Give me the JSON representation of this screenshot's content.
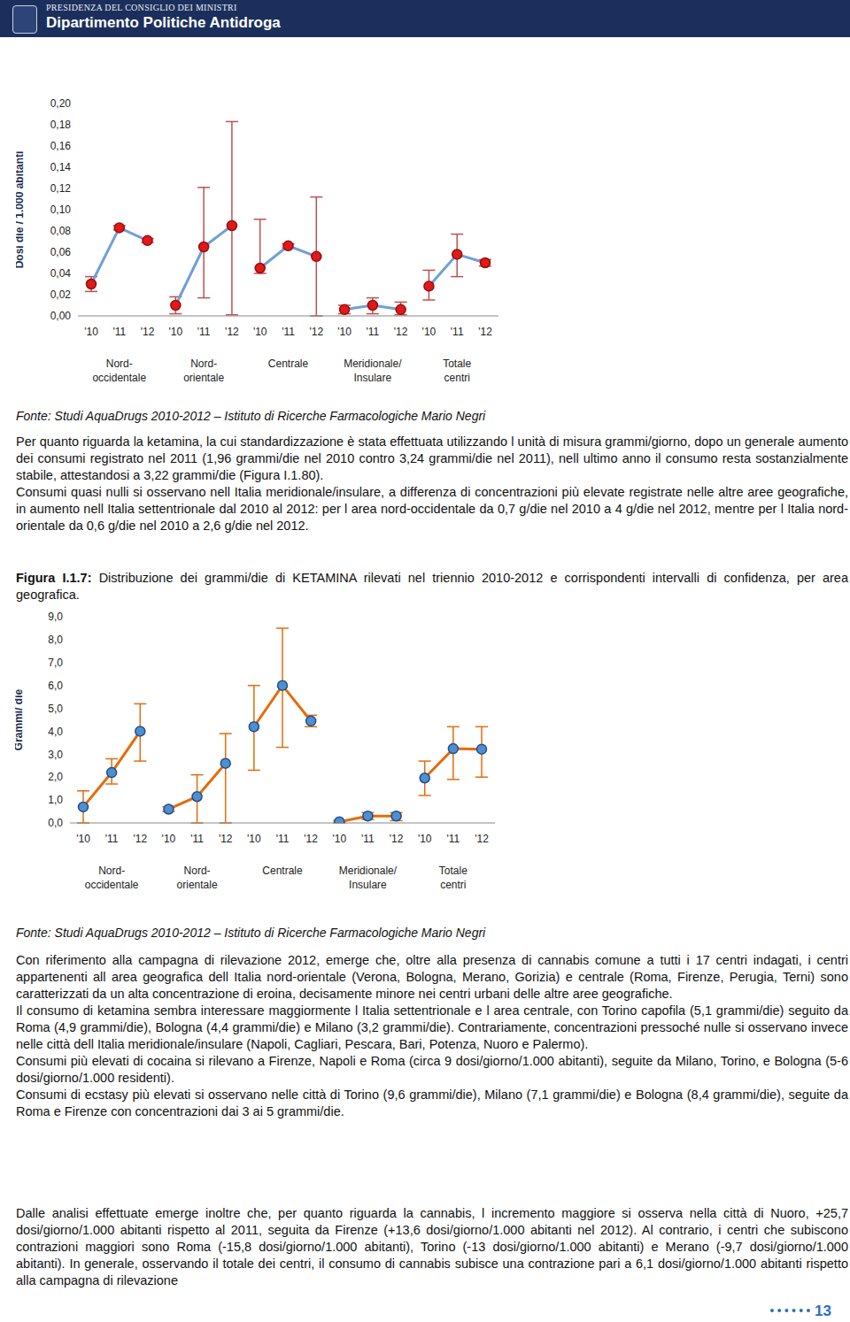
{
  "chart_data": [
    {
      "type": "line",
      "y_label": "Dosi die / 1.000 abitanti",
      "categories": [
        "'10",
        "'11",
        "'12",
        "'10",
        "'11",
        "'12",
        "'10",
        "'11",
        "'12",
        "'10",
        "'11",
        "'12",
        "'10",
        "'11",
        "'12"
      ],
      "color": "#6f9fd8",
      "marker": "circle",
      "ylim": [
        0,
        0.2
      ],
      "yticks": [
        {
          "value": 0,
          "label": "0,00"
        },
        {
          "value": 0.02,
          "label": "0,02"
        },
        {
          "value": 0.04,
          "label": "0,04"
        },
        {
          "value": 0.06,
          "label": "0,06"
        },
        {
          "value": 0.08,
          "label": "0,08"
        },
        {
          "value": 0.1,
          "label": "0,10"
        },
        {
          "value": 0.12,
          "label": "0,12"
        },
        {
          "value": 0.14,
          "label": "0,14"
        },
        {
          "value": 0.16,
          "label": "0,16"
        },
        {
          "value": 0.18,
          "label": "0,18"
        },
        {
          "value": 0.2,
          "label": "0,20"
        }
      ],
      "series": [
        {
          "name": "Nord-\noccidentale",
          "values": [
            0.03,
            0.083,
            0.071,
            null,
            null,
            null,
            null,
            null,
            null,
            null,
            null,
            null,
            null,
            null,
            null
          ],
          "ci_low": [
            0.023,
            0.081,
            0.069,
            null,
            null,
            null,
            null,
            null,
            null,
            null,
            null,
            null,
            null,
            null,
            null
          ],
          "ci_high": [
            0.037,
            0.085,
            0.073,
            null,
            null,
            null,
            null,
            null,
            null,
            null,
            null,
            null,
            null,
            null,
            null
          ]
        },
        {
          "name": "Nord-\norientale",
          "values": [
            null,
            null,
            null,
            0.01,
            0.065,
            0.085,
            null,
            null,
            null,
            null,
            null,
            null,
            null,
            null,
            null
          ],
          "ci_low": [
            null,
            null,
            null,
            0.002,
            0.017,
            0.001,
            null,
            null,
            null,
            null,
            null,
            null,
            null,
            null,
            null
          ],
          "ci_high": [
            null,
            null,
            null,
            0.018,
            0.121,
            0.183,
            null,
            null,
            null,
            null,
            null,
            null,
            null,
            null,
            null
          ]
        },
        {
          "name": "Centrale",
          "values": [
            null,
            null,
            null,
            null,
            null,
            null,
            0.045,
            0.066,
            0.056,
            null,
            null,
            null,
            null,
            null,
            null
          ],
          "ci_low": [
            null,
            null,
            null,
            null,
            null,
            null,
            0.04,
            0.064,
            0.0,
            null,
            null,
            null,
            null,
            null,
            null
          ],
          "ci_high": [
            null,
            null,
            null,
            null,
            null,
            null,
            0.091,
            0.068,
            0.112,
            null,
            null,
            null,
            null,
            null,
            null
          ]
        },
        {
          "name": "Meridionale/\nInsulare",
          "values": [
            null,
            null,
            null,
            null,
            null,
            null,
            null,
            null,
            null,
            0.006,
            0.01,
            0.006,
            null,
            null,
            null
          ],
          "ci_low": [
            null,
            null,
            null,
            null,
            null,
            null,
            null,
            null,
            null,
            0.002,
            0.002,
            0.001,
            null,
            null,
            null
          ],
          "ci_high": [
            null,
            null,
            null,
            null,
            null,
            null,
            null,
            null,
            null,
            0.01,
            0.017,
            0.013,
            null,
            null,
            null
          ]
        },
        {
          "name": "Totale\ncentri",
          "values": [
            null,
            null,
            null,
            null,
            null,
            null,
            null,
            null,
            null,
            null,
            null,
            null,
            0.028,
            0.058,
            0.05
          ],
          "ci_low": [
            null,
            null,
            null,
            null,
            null,
            null,
            null,
            null,
            null,
            null,
            null,
            null,
            0.015,
            0.037,
            0.047
          ],
          "ci_high": [
            null,
            null,
            null,
            null,
            null,
            null,
            null,
            null,
            null,
            null,
            null,
            null,
            0.043,
            0.077,
            0.053
          ]
        }
      ]
    },
    {
      "type": "line",
      "y_label": "Grammi/ die",
      "categories": [
        "'10",
        "'11",
        "'12",
        "'10",
        "'11",
        "'12",
        "'10",
        "'11",
        "'12",
        "'10",
        "'11",
        "'12",
        "'10",
        "'11",
        "'12"
      ],
      "color": "#e46c0a",
      "marker": "circle",
      "ylim": [
        0,
        9
      ],
      "yticks": [
        {
          "value": 0,
          "label": "0,0"
        },
        {
          "value": 1,
          "label": "1,0"
        },
        {
          "value": 2,
          "label": "2,0"
        },
        {
          "value": 3,
          "label": "3,0"
        },
        {
          "value": 4,
          "label": "4,0"
        },
        {
          "value": 5,
          "label": "5,0"
        },
        {
          "value": 6,
          "label": "6,0"
        },
        {
          "value": 7,
          "label": "7,0"
        },
        {
          "value": 8,
          "label": "8,0"
        },
        {
          "value": 9,
          "label": "9,0"
        }
      ],
      "series": [
        {
          "name": "Nord-\noccidentale",
          "values": [
            0.7,
            2.2,
            4.0,
            null,
            null,
            null,
            null,
            null,
            null,
            null,
            null,
            null,
            null,
            null,
            null
          ],
          "ci_low": [
            0.0,
            1.7,
            2.7,
            null,
            null,
            null,
            null,
            null,
            null,
            null,
            null,
            null,
            null,
            null,
            null
          ],
          "ci_high": [
            1.4,
            2.8,
            5.2,
            null,
            null,
            null,
            null,
            null,
            null,
            null,
            null,
            null,
            null,
            null,
            null
          ]
        },
        {
          "name": "Nord-\norientale",
          "values": [
            null,
            null,
            null,
            0.6,
            1.15,
            2.6,
            null,
            null,
            null,
            null,
            null,
            null,
            null,
            null,
            null
          ],
          "ci_low": [
            null,
            null,
            null,
            0.5,
            0.0,
            0.0,
            null,
            null,
            null,
            null,
            null,
            null,
            null,
            null,
            null
          ],
          "ci_high": [
            null,
            null,
            null,
            0.7,
            2.1,
            3.9,
            null,
            null,
            null,
            null,
            null,
            null,
            null,
            null,
            null
          ]
        },
        {
          "name": "Centrale",
          "values": [
            null,
            null,
            null,
            null,
            null,
            null,
            4.2,
            6.0,
            4.45,
            null,
            null,
            null,
            null,
            null,
            null
          ],
          "ci_low": [
            null,
            null,
            null,
            null,
            null,
            null,
            2.3,
            3.3,
            4.2,
            null,
            null,
            null,
            null,
            null,
            null
          ],
          "ci_high": [
            null,
            null,
            null,
            null,
            null,
            null,
            6.0,
            8.5,
            4.7,
            null,
            null,
            null,
            null,
            null,
            null
          ]
        },
        {
          "name": "Meridionale/\nInsulare",
          "values": [
            null,
            null,
            null,
            null,
            null,
            null,
            null,
            null,
            null,
            0.05,
            0.3,
            0.3,
            null,
            null,
            null
          ],
          "ci_low": [
            null,
            null,
            null,
            null,
            null,
            null,
            null,
            null,
            null,
            0.0,
            0.15,
            0.1,
            null,
            null,
            null
          ],
          "ci_high": [
            null,
            null,
            null,
            null,
            null,
            null,
            null,
            null,
            null,
            0.1,
            0.45,
            0.45,
            null,
            null,
            null
          ]
        },
        {
          "name": "Totale\ncentri",
          "values": [
            null,
            null,
            null,
            null,
            null,
            null,
            null,
            null,
            null,
            null,
            null,
            null,
            1.96,
            3.24,
            3.22
          ],
          "ci_low": [
            null,
            null,
            null,
            null,
            null,
            null,
            null,
            null,
            null,
            null,
            null,
            null,
            1.2,
            1.9,
            2.0
          ],
          "ci_high": [
            null,
            null,
            null,
            null,
            null,
            null,
            null,
            null,
            null,
            null,
            null,
            null,
            2.7,
            4.2,
            4.2
          ]
        }
      ]
    }
  ],
  "document": {
    "header": {
      "line1": "PRESIDENZA DEL CONSIGLIO DEI MINISTRI",
      "line2": "Dipartimento Politiche Antidroga"
    },
    "source_1": "Fonte: Studi AquaDrugs 2010-2012 – Istituto di Ricerche Farmacologiche Mario Negri",
    "paragraphs_1": [
      "Per quanto riguarda la ketamina, la cui standardizzazione è stata effettuata utilizzando l unità di misura grammi/giorno, dopo un generale aumento dei consumi registrato nel 2011 (1,96 grammi/die nel 2010 contro 3,24 grammi/die nel 2011), nell ultimo anno il consumo resta sostanzialmente stabile, attestandosi a 3,22 grammi/die (Figura I.1.80).",
      "Consumi quasi nulli si osservano nell Italia meridionale/insulare, a differenza di concentrazioni più elevate registrate nelle altre aree geografiche, in aumento nell Italia settentrionale dal 2010 al 2012: per l area nord-occidentale da 0,7 g/die nel 2010 a 4 g/die nel 2012, mentre per l Italia nord-orientale da 0,6 g/die nel 2010 a 2,6 g/die nel 2012."
    ],
    "caption": {
      "label": "Figura I.1.7:",
      "text": "Distribuzione dei grammi/die di KETAMINA rilevati nel triennio 2010-2012 e corrispondenti intervalli di confidenza, per area geografica."
    },
    "source_2": "Fonte: Studi AquaDrugs 2010-2012 – Istituto di Ricerche Farmacologiche Mario Negri",
    "paragraphs_2": [
      "Con riferimento alla campagna di rilevazione 2012, emerge che, oltre alla presenza di cannabis comune a tutti i 17 centri indagati, i centri appartenenti all area geografica dell Italia nord-orientale (Verona, Bologna, Merano, Gorizia) e centrale (Roma, Firenze, Perugia, Terni) sono caratterizzati da un alta concentrazione di eroina, decisamente minore nei centri urbani delle altre aree geografiche.",
      "Il consumo di ketamina sembra interessare maggiormente l Italia settentrionale e l area centrale, con Torino capofila (5,1 grammi/die) seguito da Roma (4,9 grammi/die), Bologna (4,4 grammi/die) e Milano (3,2 grammi/die). Contrariamente, concentrazioni pressoché nulle si osservano invece nelle città dell Italia meridionale/insulare (Napoli, Cagliari, Pescara, Bari, Potenza, Nuoro e Palermo).",
      "Consumi più elevati di cocaina si rilevano a Firenze, Napoli e Roma (circa 9 dosi/giorno/1.000 abitanti), seguite da Milano, Torino, e Bologna (5-6 dosi/giorno/1.000 residenti).",
      "Consumi di ecstasy più elevati si osservano nelle città di Torino (9,6 grammi/die), Milano (7,1 grammi/die) e Bologna (8,4 grammi/die), seguite da Roma e Firenze con concentrazioni dai 3 ai 5 grammi/die."
    ],
    "paragraphs_3": [
      "Dalle analisi effettuate emerge inoltre che, per quanto riguarda la cannabis, l incremento maggiore si osserva nella città di Nuoro, +25,7 dosi/giorno/1.000 abitanti rispetto al 2011, seguita da Firenze (+13,6 dosi/giorno/1.000 abitanti nel 2012). Al contrario, i centri che subiscono contrazioni maggiori sono Roma (-15,8 dosi/giorno/1.000 abitanti), Torino (-13 dosi/giorno/1.000 abitanti) e Merano (-9,7 dosi/giorno/1.000 abitanti). In generale, osservando il totale dei centri, il consumo di cannabis subisce una contrazione pari a 6,1 dosi/giorno/1.000 abitanti rispetto alla campagna di rilevazione"
    ],
    "page_number": "13"
  }
}
